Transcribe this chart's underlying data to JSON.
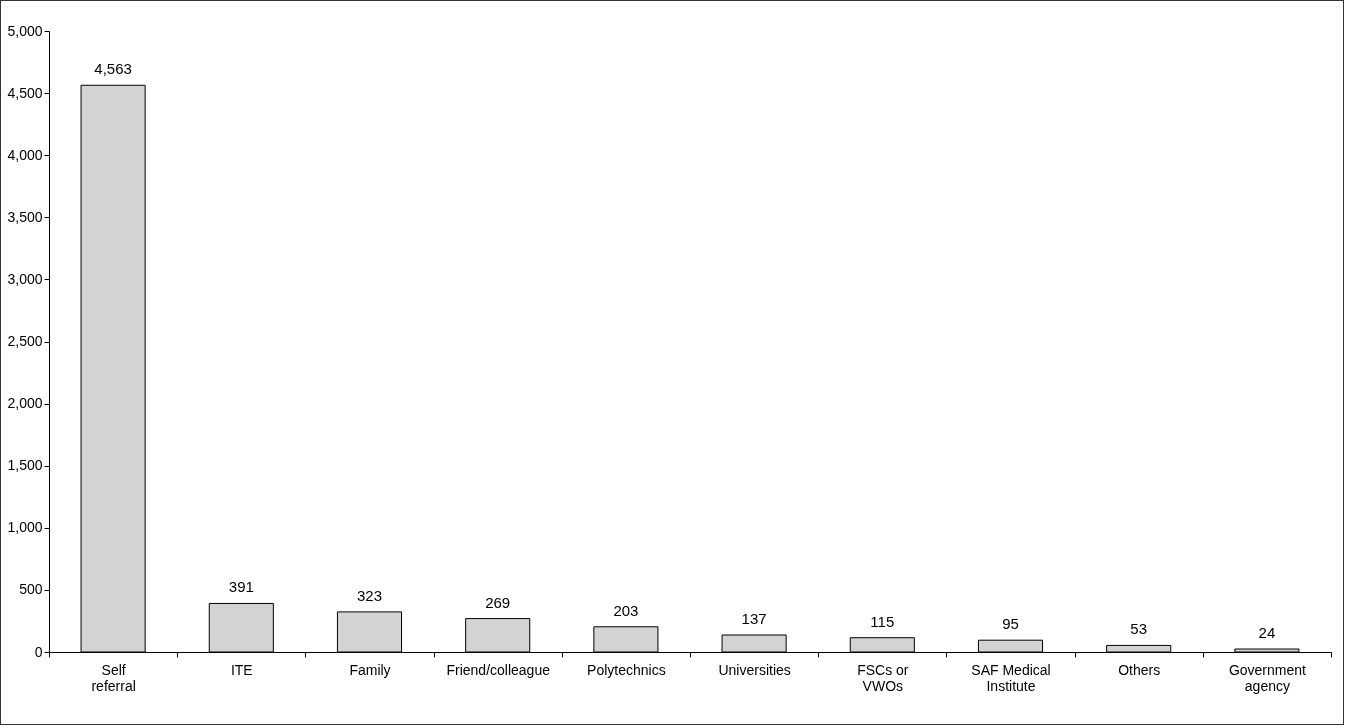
{
  "chart_data": {
    "type": "bar",
    "categories": [
      "Self referral",
      "ITE",
      "Family",
      "Friend/colleague",
      "Polytechnics",
      "Universities",
      "FSCs or VWOs",
      "SAF Medical Institute",
      "Others",
      "Government agency"
    ],
    "values": [
      4563,
      391,
      323,
      269,
      203,
      137,
      115,
      95,
      53,
      24
    ],
    "color": "#d3d3d3",
    "ylim": [
      0,
      5000
    ],
    "yticks": [
      {
        "value": 0,
        "label": "0"
      },
      {
        "value": 500,
        "label": "500"
      },
      {
        "value": 1000,
        "label": "1,000"
      },
      {
        "value": 1500,
        "label": "1,500"
      },
      {
        "value": 2000,
        "label": "2,000"
      },
      {
        "value": 2500,
        "label": "2,500"
      },
      {
        "value": 3000,
        "label": "3,000"
      },
      {
        "value": 3500,
        "label": "3,500"
      },
      {
        "value": 4000,
        "label": "4,000"
      },
      {
        "value": 4500,
        "label": "4,500"
      },
      {
        "value": 5000,
        "label": "5,000"
      }
    ],
    "value_labels": [
      "4,563",
      "391",
      "323",
      "269",
      "203",
      "137",
      "115",
      "95",
      "53",
      "24"
    ],
    "grid": false
  }
}
